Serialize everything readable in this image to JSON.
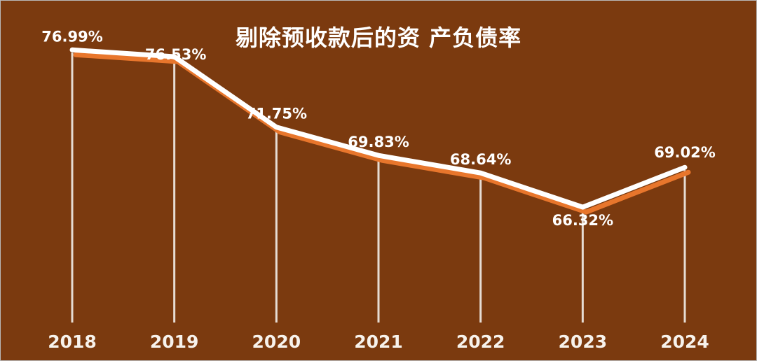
{
  "chart_data": {
    "type": "line",
    "title": "剔除预收款后的资 产负债率",
    "categories": [
      "2018",
      "2019",
      "2020",
      "2021",
      "2022",
      "2023",
      "2024"
    ],
    "values": [
      76.99,
      76.53,
      71.75,
      69.83,
      68.64,
      66.32,
      69.02
    ],
    "value_labels": [
      "76.99%",
      "76.53%",
      "71.75%",
      "69.83%",
      "68.64%",
      "66.32%",
      "69.02%"
    ],
    "xlabel": "",
    "ylabel": "",
    "ylim": [
      64,
      78
    ],
    "grid": false,
    "legend": "none",
    "colors": {
      "background": "#7b3a0f",
      "line": "#ffffff",
      "line_shadow": "#e8762c",
      "stem": "#f2eee9",
      "label_text": "#ffffff",
      "title_text": "#ffffff"
    }
  }
}
